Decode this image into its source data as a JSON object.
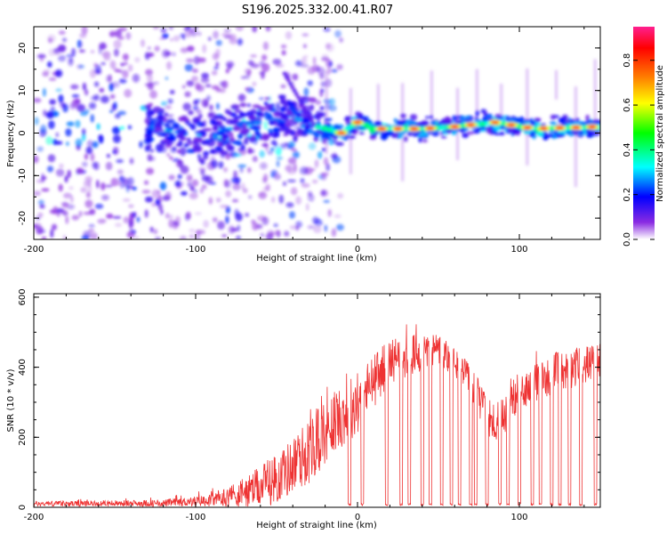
{
  "title": "S196.2025.332.00.41.R07",
  "chart_data": [
    {
      "type": "heatmap",
      "xlabel": "Height of straight line (km)",
      "ylabel": "Frequency (Hz)",
      "xlim": [
        -200,
        150
      ],
      "ylim": [
        -25,
        25
      ],
      "xticks": [
        -200,
        -100,
        0,
        100
      ],
      "yticks": [
        -20,
        -10,
        0,
        10,
        20
      ],
      "colorbar": {
        "label": "Normalized spectral amplitude",
        "range": [
          0,
          0.95
        ],
        "ticks": [
          0.0,
          0.2,
          0.4,
          0.6,
          0.8
        ],
        "tick_labels": [
          "0.0",
          "0.2",
          "0.4",
          "0.6",
          "0.8"
        ],
        "colors": [
          "#ffffff",
          "#8a2be2",
          "#0000ff",
          "#00ffff",
          "#00ff00",
          "#ffff00",
          "#ff8000",
          "#ff0000",
          "#ff1f8f"
        ]
      },
      "ridge": [
        {
          "x": -125,
          "f": 1.5
        },
        {
          "x": -100,
          "f": -1
        },
        {
          "x": -80,
          "f": 0
        },
        {
          "x": -60,
          "f": 2
        },
        {
          "x": -45,
          "f": 4
        },
        {
          "x": -30,
          "f": 2
        },
        {
          "x": -20,
          "f": 1
        },
        {
          "x": -10,
          "f": 0
        },
        {
          "x": 0,
          "f": 2.5
        },
        {
          "x": 10,
          "f": 1
        },
        {
          "x": 40,
          "f": 1
        },
        {
          "x": 60,
          "f": 1.5
        },
        {
          "x": 85,
          "f": 2.5
        },
        {
          "x": 110,
          "f": 1
        },
        {
          "x": 150,
          "f": 1.5
        }
      ],
      "hot_spots_x": [
        -10,
        0,
        15,
        25,
        35,
        45,
        60,
        70,
        85,
        95,
        105,
        115,
        125,
        135,
        145
      ]
    },
    {
      "type": "line",
      "xlabel": "Height of straight line (km)",
      "ylabel": "SNR (10 * v/v)",
      "xlim": [
        -200,
        150
      ],
      "ylim": [
        0,
        610
      ],
      "xticks": [
        -200,
        -100,
        0,
        100
      ],
      "yticks": [
        0,
        200,
        400,
        600
      ],
      "color": "#ee3333",
      "envelope": [
        {
          "x": -200,
          "base": 10,
          "amp": 15
        },
        {
          "x": -120,
          "base": 12,
          "amp": 20
        },
        {
          "x": -90,
          "base": 20,
          "amp": 35
        },
        {
          "x": -70,
          "base": 40,
          "amp": 90
        },
        {
          "x": -50,
          "base": 80,
          "amp": 140
        },
        {
          "x": -30,
          "base": 160,
          "amp": 190
        },
        {
          "x": -15,
          "base": 240,
          "amp": 180
        },
        {
          "x": 0,
          "base": 300,
          "amp": 180
        },
        {
          "x": 20,
          "base": 420,
          "amp": 130
        },
        {
          "x": 50,
          "base": 450,
          "amp": 100
        },
        {
          "x": 65,
          "base": 390,
          "amp": 90
        },
        {
          "x": 85,
          "base": 230,
          "amp": 130
        },
        {
          "x": 100,
          "base": 330,
          "amp": 100
        },
        {
          "x": 120,
          "base": 380,
          "amp": 120
        },
        {
          "x": 150,
          "base": 420,
          "amp": 100
        }
      ],
      "dropouts_x": [
        -5,
        3,
        18,
        27,
        32,
        40,
        45,
        52,
        58,
        63,
        70,
        73,
        80,
        88,
        93,
        100,
        108,
        113,
        120,
        125,
        131,
        138,
        147
      ]
    }
  ]
}
